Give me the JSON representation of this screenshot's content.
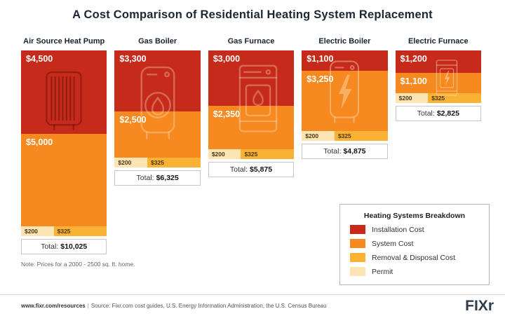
{
  "title": "A Cost Comparison of Residential Heating System Replacement",
  "note": "Note: Prices for a 2000 - 2500 sq. ft. home.",
  "legend": {
    "title": "Heating Systems Breakdown",
    "items": [
      {
        "label": "Installation Cost",
        "color": "#c62a1b"
      },
      {
        "label": "System Cost",
        "color": "#f6891f"
      },
      {
        "label": "Removal & Disposal Cost",
        "color": "#f9b233"
      },
      {
        "label": "Permit",
        "color": "#fce5b3"
      }
    ]
  },
  "chart_data": {
    "type": "bar",
    "stacked": true,
    "orientation": "top-aligned-hanging",
    "currency": "$",
    "total_label": "Total:",
    "categories": [
      "Air Source Heat Pump",
      "Gas Boiler",
      "Gas Furnace",
      "Electric Boiler",
      "Electric Furnace"
    ],
    "series": [
      {
        "name": "Installation Cost",
        "color": "#c62a1b",
        "values": [
          4500,
          3300,
          3000,
          1100,
          1200
        ]
      },
      {
        "name": "System Cost",
        "color": "#f6891f",
        "values": [
          5000,
          2500,
          2350,
          3250,
          1100
        ]
      },
      {
        "name": "Removal & Disposal Cost",
        "color": "#f9b233",
        "values": [
          325,
          325,
          325,
          325,
          325
        ]
      },
      {
        "name": "Permit",
        "color": "#fce5b3",
        "values": [
          200,
          200,
          200,
          200,
          200
        ]
      }
    ],
    "totals": [
      10025,
      6325,
      5875,
      4875,
      2825
    ],
    "icons": [
      "heat-pump-icon",
      "gas-boiler-icon",
      "gas-furnace-icon",
      "electric-boiler-icon",
      "electric-furnace-icon"
    ]
  },
  "footer": {
    "url": "www.fixr.com/resources",
    "separator": "|",
    "source": "Source: Fixr.com cost guides, U.S. Energy Information Administration, the U.S. Census Bureau",
    "logo_text": "FIX",
    "logo_r": "r"
  }
}
